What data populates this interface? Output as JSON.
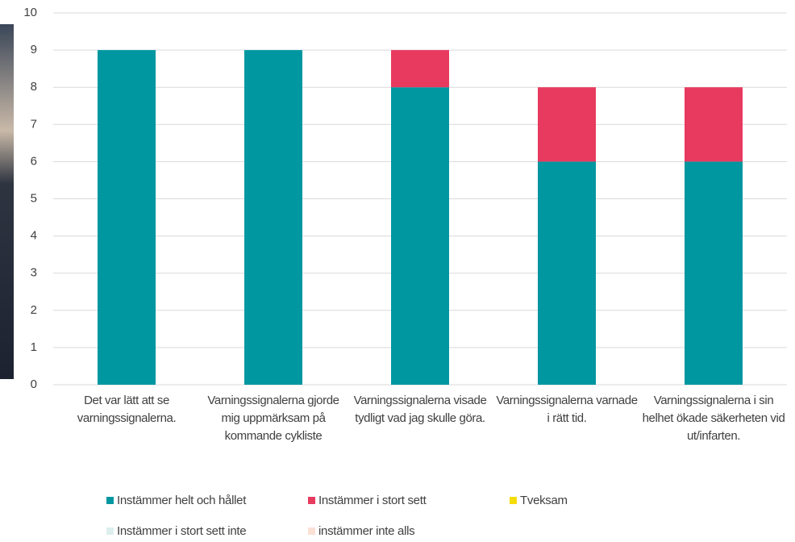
{
  "chart_data": {
    "type": "stacked_bar",
    "categories": [
      "Det var lätt att se varningssignalerna.",
      "Varningssignalerna gjorde mig uppmärksam på kommande cykliste",
      "Varningssignalerna visade tydligt vad jag skulle göra.",
      "Varningssignalerna varnade i rätt tid.",
      "Varningssignalerna i sin helhet ökade säkerheten vid ut/infarten."
    ],
    "series": [
      {
        "name": "Instämmer helt och hållet",
        "color": "#0097a1",
        "values": [
          9,
          9,
          8,
          6,
          6
        ]
      },
      {
        "name": "Instämmer i stort sett",
        "color": "#e83a5f",
        "values": [
          0,
          0,
          1,
          2,
          2
        ]
      },
      {
        "name": "Tveksam",
        "color": "#f7dc0c",
        "values": [
          0,
          0,
          0,
          0,
          0
        ]
      },
      {
        "name": "Instämmer i stort sett inte",
        "color": "#dcefee",
        "values": [
          0,
          0,
          0,
          0,
          0
        ]
      },
      {
        "name": "instämmer inte alls",
        "color": "#fbe0d6",
        "values": [
          0,
          0,
          0,
          0,
          0
        ]
      }
    ],
    "ylim": [
      0,
      10
    ],
    "yticks": [
      0,
      1,
      2,
      3,
      4,
      5,
      6,
      7,
      8,
      9,
      10
    ],
    "grid": true
  }
}
